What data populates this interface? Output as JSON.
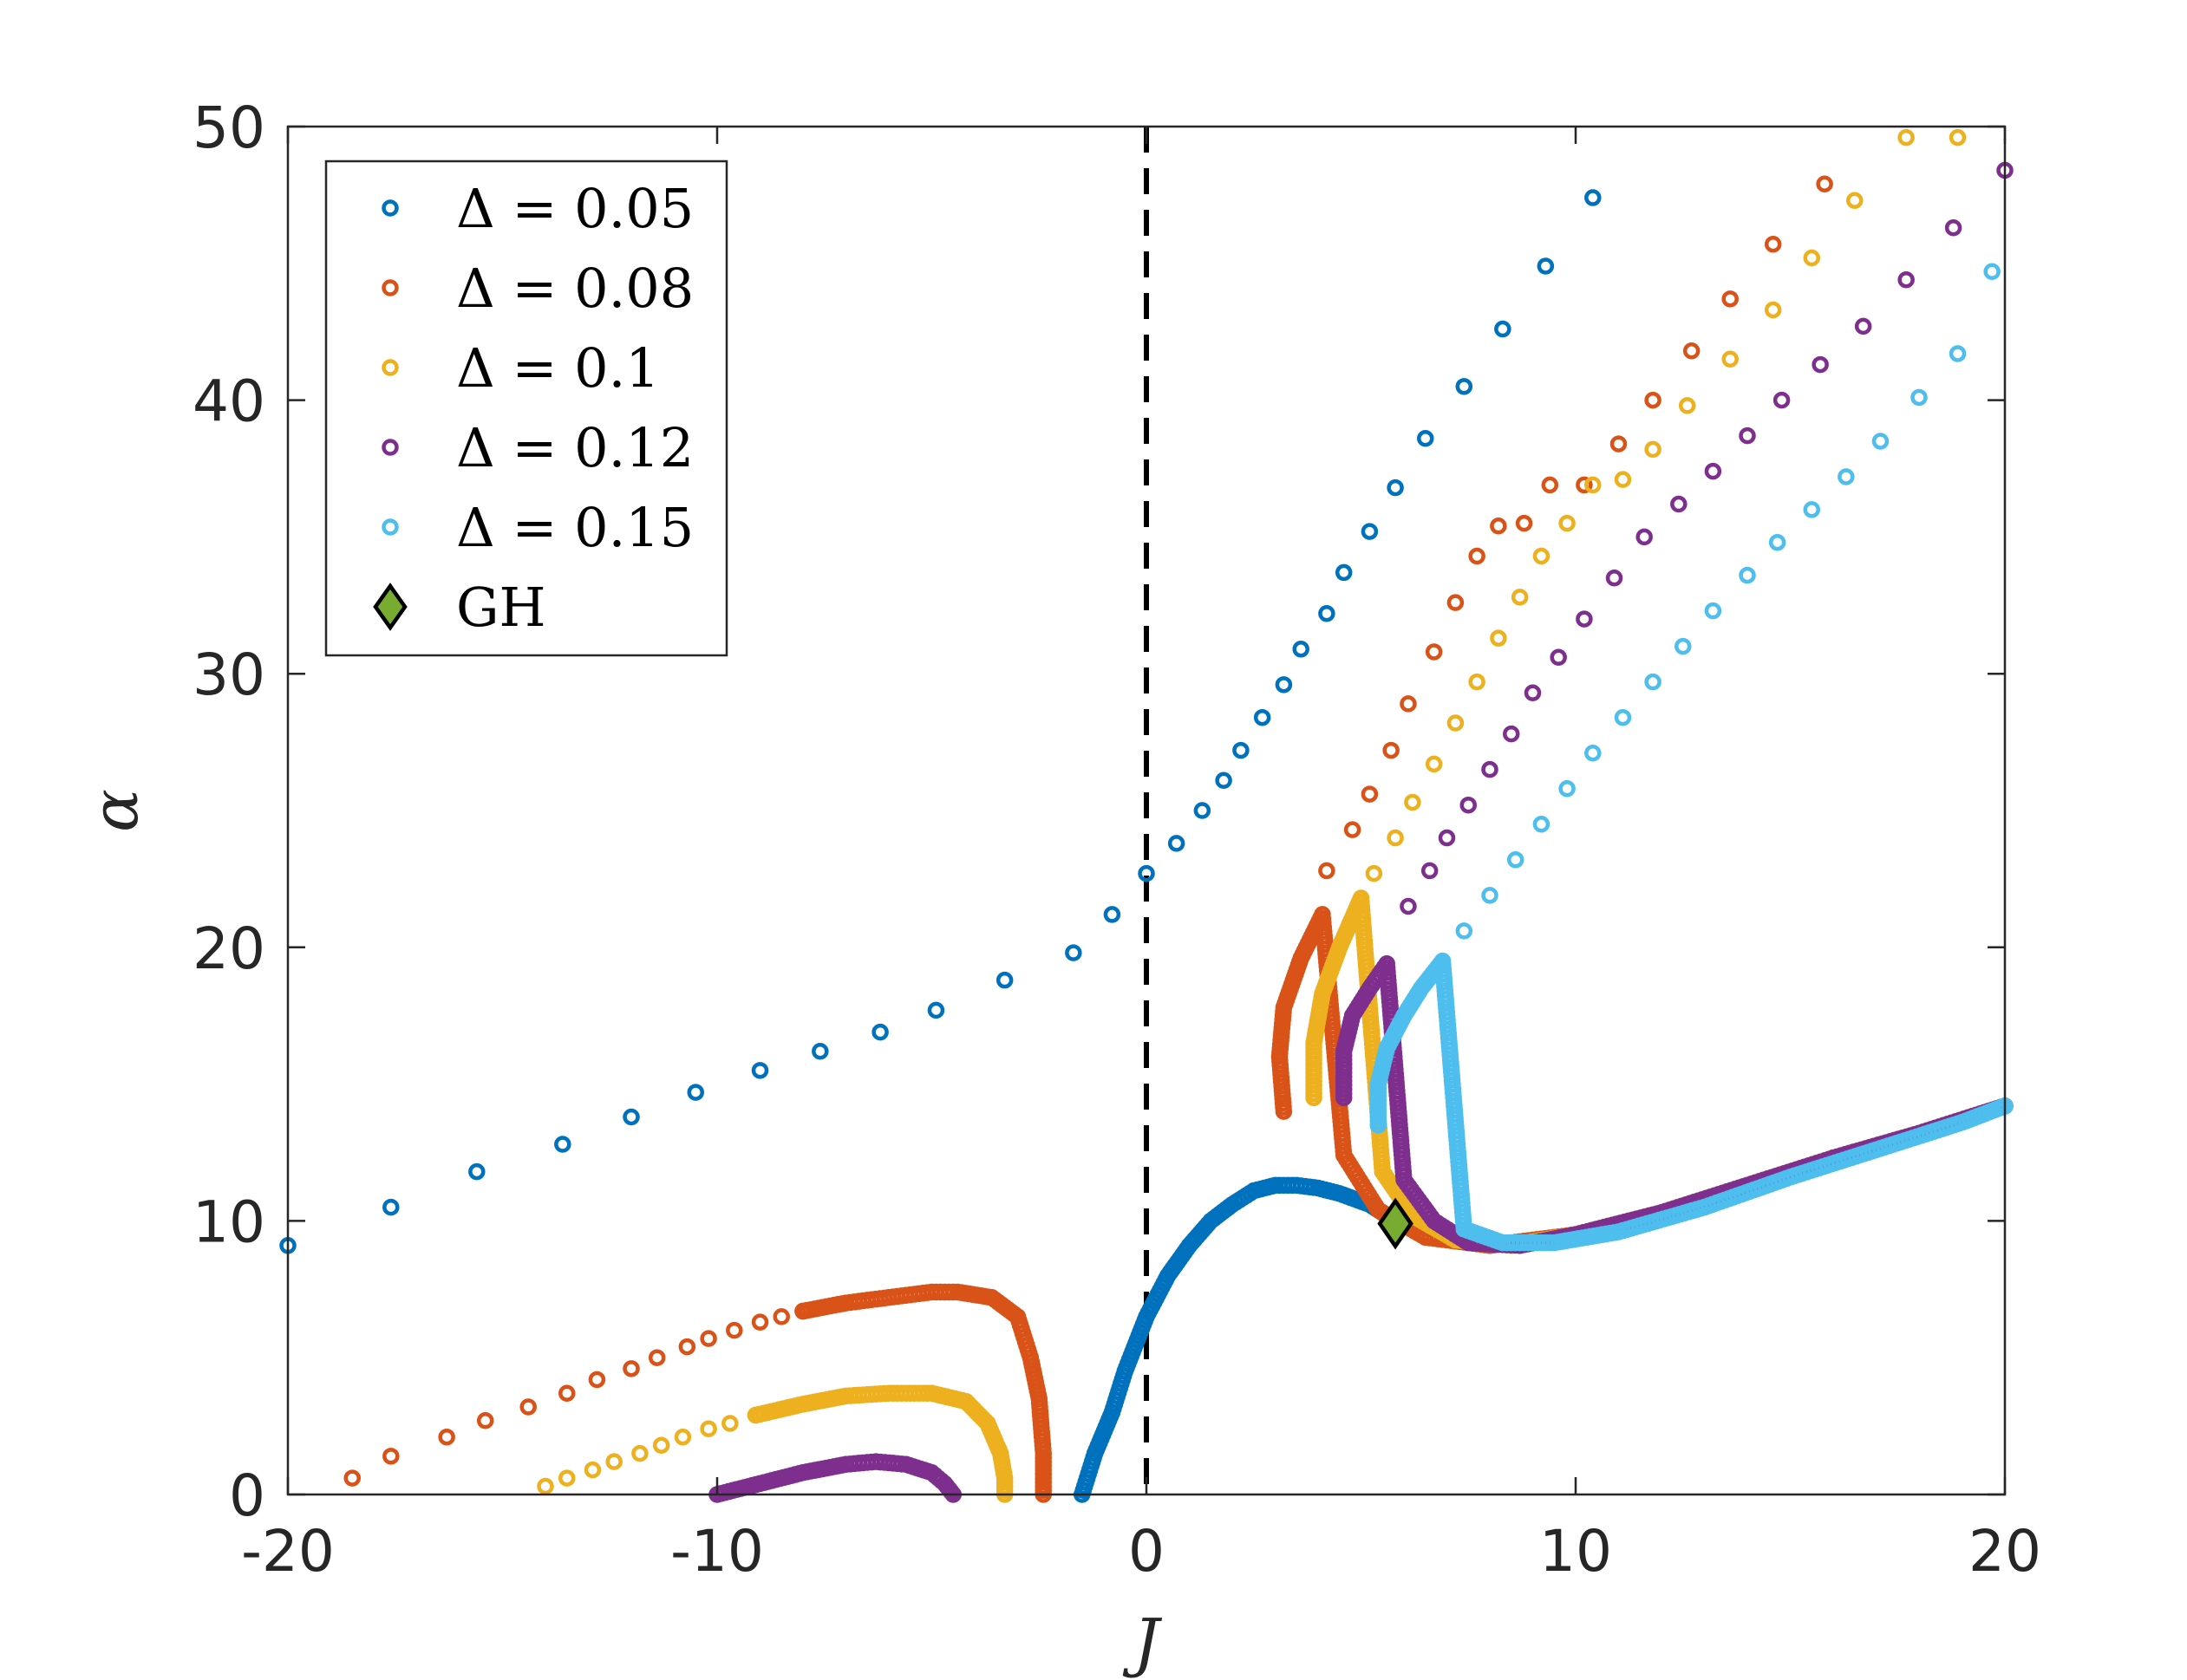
{
  "chart_data": {
    "type": "scatter",
    "title": "",
    "xlabel": "J",
    "ylabel": "α",
    "xlim": [
      -20,
      20
    ],
    "ylim": [
      0,
      50
    ],
    "xticks": [
      -20,
      -10,
      0,
      10,
      20
    ],
    "xtick_labels": [
      "-20",
      "-10",
      "0",
      "10",
      "20"
    ],
    "yticks": [
      0,
      10,
      20,
      30,
      40,
      50
    ],
    "ytick_labels": [
      "0",
      "10",
      "20",
      "30",
      "40",
      "50"
    ],
    "grid": false,
    "legend_position": "top-left",
    "vertical_line": {
      "x": 0,
      "style": "dashed",
      "color": "#000000"
    },
    "series": [
      {
        "name": "Δ = 0.05",
        "color": "#0072BD",
        "segments": [
          {
            "mode": "sparse",
            "x": [
              -20,
              -17.6,
              -15.6,
              -13.6,
              -12,
              -10.5,
              -9,
              -7.6,
              -6.2,
              -4.9,
              -3.3,
              -1.7,
              -0.8,
              0,
              0.7,
              1.3,
              1.8,
              2.2,
              2.7,
              3.2,
              3.6,
              4.2,
              4.6,
              5.2,
              5.8,
              6.5,
              7.4,
              8.3,
              9.3,
              10.4
            ],
            "y": [
              9.1,
              10.5,
              11.8,
              12.8,
              13.8,
              14.7,
              15.5,
              16.2,
              16.9,
              17.7,
              18.8,
              19.8,
              21.2,
              22.7,
              23.8,
              25,
              26.1,
              27.2,
              28.4,
              29.6,
              30.9,
              32.2,
              33.7,
              35.2,
              36.8,
              38.6,
              40.5,
              42.6,
              44.9,
              47.4
            ]
          },
          {
            "mode": "dense",
            "x": [
              -1.5,
              -1.2,
              -0.8,
              -0.5,
              0,
              0.5,
              1,
              1.5,
              2,
              2.5,
              3,
              3.5,
              4,
              4.5,
              5.2,
              5.8
            ],
            "y": [
              0,
              1.5,
              3,
              4.5,
              6.5,
              8,
              9.1,
              10,
              10.6,
              11.1,
              11.3,
              11.3,
              11.2,
              11,
              10.6,
              10
            ]
          }
        ]
      },
      {
        "name": "Δ = 0.08",
        "color": "#D95319",
        "segments": [
          {
            "mode": "sparse",
            "x": [
              -18.5,
              -17.6,
              -16.3,
              -15.4,
              -14.4,
              -13.5,
              -12.8,
              -12,
              -11.4,
              -10.7,
              -10.2,
              -9.6,
              -9,
              -8.5,
              -8
            ],
            "y": [
              0.6,
              1.4,
              2.1,
              2.7,
              3.2,
              3.7,
              4.2,
              4.6,
              5,
              5.4,
              5.7,
              6,
              6.3,
              6.5,
              6.7
            ]
          },
          {
            "mode": "dense",
            "x": [
              -8,
              -7,
              -6,
              -5,
              -4.4,
              -3.6,
              -3,
              -2.7,
              -2.5,
              -2.4,
              -2.4
            ],
            "y": [
              6.7,
              7,
              7.2,
              7.4,
              7.4,
              7.2,
              6.5,
              5,
              3.5,
              1.5,
              0
            ]
          },
          {
            "mode": "dense",
            "x": [
              3.2,
              3.1,
              3.2,
              3.6,
              4.1,
              4.6,
              5.4,
              6.5,
              8,
              10,
              12,
              14,
              16,
              18,
              20
            ],
            "y": [
              14,
              16,
              17.8,
              19.6,
              21.2,
              12.4,
              10.4,
              9.4,
              9.1,
              9.5,
              10.3,
              11.3,
              12.3,
              13.2,
              14.2
            ]
          },
          {
            "mode": "sparse",
            "x": [
              4.2,
              4.8,
              5.2,
              5.7,
              6.1,
              6.7,
              7.2,
              7.7,
              8.2,
              8.8,
              9.4,
              10.2,
              11,
              11.8,
              12.7,
              13.6,
              14.6,
              15.8
            ],
            "y": [
              22.8,
              24.3,
              25.6,
              27.2,
              28.9,
              30.8,
              32.6,
              34.3,
              35.4,
              35.5,
              36.9,
              36.9,
              38.4,
              40,
              41.8,
              43.7,
              45.7,
              47.9
            ]
          }
        ]
      },
      {
        "name": "Δ = 0.1",
        "color": "#EDB120",
        "segments": [
          {
            "mode": "sparse",
            "x": [
              -14,
              -13.5,
              -12.9,
              -12.4,
              -11.8,
              -11.3,
              -10.8,
              -10.2,
              -9.7,
              -9.1
            ],
            "y": [
              0.3,
              0.6,
              0.9,
              1.2,
              1.5,
              1.8,
              2.1,
              2.4,
              2.6,
              2.9
            ]
          },
          {
            "mode": "dense",
            "x": [
              -9.1,
              -8,
              -7,
              -6,
              -5,
              -4.2,
              -3.7,
              -3.4,
              -3.3,
              -3.3
            ],
            "y": [
              2.9,
              3.3,
              3.6,
              3.7,
              3.7,
              3.4,
              2.6,
              1.5,
              0.6,
              0
            ]
          },
          {
            "mode": "dense",
            "x": [
              3.9,
              3.9,
              4.1,
              4.5,
              5,
              5.5,
              6.2,
              7.2,
              8.5,
              10,
              12,
              14,
              16,
              18,
              20
            ],
            "y": [
              14.5,
              16.5,
              18.3,
              20,
              21.8,
              11.8,
              10.2,
              9.3,
              9.1,
              9.5,
              10.3,
              11.3,
              12.3,
              13.2,
              14.2
            ]
          },
          {
            "mode": "sparse",
            "x": [
              5.3,
              5.8,
              6.2,
              6.7,
              7.2,
              7.7,
              8.2,
              8.7,
              9.2,
              9.8,
              10.4,
              11.1,
              11.8,
              12.6,
              13.6,
              14.6,
              15.5,
              16.5,
              17.7,
              18.9
            ],
            "y": [
              22.7,
              24,
              25.3,
              26.7,
              28.2,
              29.7,
              31.3,
              32.8,
              34.3,
              35.5,
              36.9,
              37.1,
              38.2,
              39.8,
              41.5,
              43.3,
              45.2,
              47.3,
              49.6,
              49.6
            ]
          }
        ]
      },
      {
        "name": "Δ = 0.12",
        "color": "#7E2F8E",
        "segments": [
          {
            "mode": "dense",
            "x": [
              -10,
              -9,
              -8,
              -7,
              -6.3,
              -5.6,
              -5,
              -4.7,
              -4.5
            ],
            "y": [
              0,
              0.4,
              0.8,
              1.1,
              1.2,
              1.1,
              0.8,
              0.4,
              0
            ]
          },
          {
            "mode": "dense",
            "x": [
              4.6,
              4.6,
              4.8,
              5.2,
              5.6,
              6,
              6.7,
              7.5,
              8.7,
              10,
              12,
              14,
              16,
              18,
              20
            ],
            "y": [
              14.5,
              16.2,
              17.5,
              18.5,
              19.4,
              11.5,
              10,
              9.2,
              9.1,
              9.5,
              10.3,
              11.3,
              12.3,
              13.2,
              14.2
            ]
          },
          {
            "mode": "sparse",
            "x": [
              6.1,
              6.6,
              7,
              7.5,
              8,
              8.5,
              9,
              9.6,
              10.2,
              10.9,
              11.6,
              12.4,
              13.2,
              14,
              14.8,
              15.7,
              16.7,
              17.7,
              18.8,
              20
            ],
            "y": [
              21.5,
              22.8,
              24,
              25.2,
              26.5,
              27.8,
              29.3,
              30.6,
              32,
              33.5,
              35,
              36.2,
              37.4,
              38.7,
              40,
              41.3,
              42.7,
              44.4,
              46.3,
              48.4
            ]
          }
        ]
      },
      {
        "name": "Δ = 0.15",
        "color": "#4DBEEE",
        "segments": [
          {
            "mode": "dense",
            "x": [
              5.4,
              5.4,
              5.6,
              6,
              6.4,
              6.9,
              7.4,
              8.3,
              9.5,
              11,
              13,
              15,
              17,
              19,
              20
            ],
            "y": [
              13.5,
              15,
              16.3,
              17.5,
              18.5,
              19.5,
              9.7,
              9.2,
              9.2,
              9.6,
              10.5,
              11.6,
              12.6,
              13.6,
              14.2
            ]
          },
          {
            "mode": "sparse",
            "x": [
              7.4,
              8,
              8.6,
              9.2,
              9.8,
              10.4,
              11.1,
              11.8,
              12.5,
              13.2,
              14,
              14.7,
              15.5,
              16.3,
              17.1,
              18,
              18.9,
              19.7
            ],
            "y": [
              20.6,
              21.9,
              23.2,
              24.5,
              25.8,
              27.1,
              28.4,
              29.7,
              31,
              32.3,
              33.6,
              34.8,
              36,
              37.2,
              38.5,
              40.1,
              41.7,
              44.7
            ]
          }
        ]
      }
    ],
    "markers": [
      {
        "name": "GH",
        "x": 5.8,
        "y": 9.9,
        "color": "#77AC30",
        "shape": "diamond"
      }
    ],
    "legend": {
      "entries": [
        "Δ = 0.05",
        "Δ = 0.08",
        "Δ = 0.1",
        "Δ = 0.12",
        "Δ = 0.15",
        "GH"
      ]
    }
  }
}
